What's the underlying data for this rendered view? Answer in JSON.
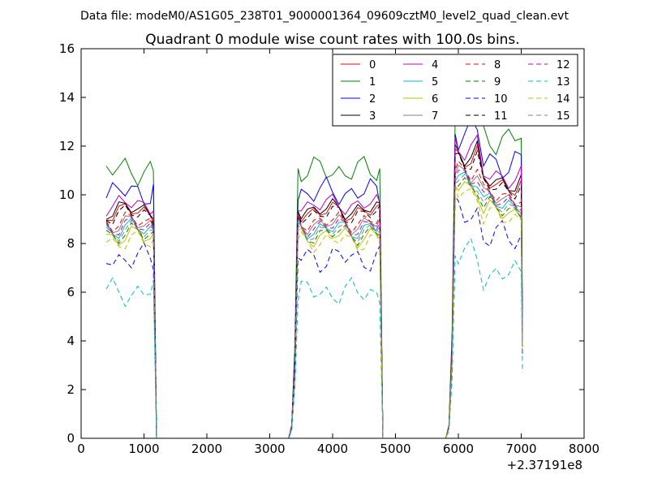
{
  "header": {
    "data_file": "Data file: modeM0/AS1G05_238T01_9000001364_09609cztM0_level2_quad_clean.evt"
  },
  "chart_data": {
    "type": "line",
    "title": "Quadrant 0 module wise count rates with 100.0s bins.",
    "xlabel": "",
    "ylabel": "",
    "xlim": [
      0,
      8000
    ],
    "ylim": [
      0,
      16
    ],
    "x_offset_label": "+2.37191e8",
    "xticks": [
      0,
      1000,
      2000,
      3000,
      4000,
      5000,
      6000,
      7000,
      8000
    ],
    "yticks": [
      0,
      2,
      4,
      6,
      8,
      10,
      12,
      14,
      16
    ],
    "legend_position": "top-right",
    "x": [
      400,
      500,
      600,
      700,
      800,
      900,
      1000,
      1100,
      1150,
      1200,
      1300,
      1400,
      1500,
      1600,
      1700,
      1800,
      1900,
      2000,
      2100,
      2200,
      2300,
      2400,
      2500,
      2600,
      2700,
      2800,
      2900,
      3000,
      3100,
      3200,
      3300,
      3350,
      3400,
      3450,
      3500,
      3600,
      3700,
      3800,
      3900,
      4000,
      4100,
      4200,
      4300,
      4400,
      4500,
      4600,
      4700,
      4750,
      4800,
      4900,
      5000,
      5100,
      5200,
      5300,
      5400,
      5500,
      5600,
      5700,
      5800,
      5850,
      5900,
      5950,
      6000,
      6100,
      6200,
      6300,
      6400,
      6500,
      6600,
      6700,
      6800,
      6900,
      7000,
      7020
    ],
    "series": [
      {
        "name": "0",
        "color": "#ff0000",
        "dash": "solid",
        "level": 9.3,
        "amp": 0.3
      },
      {
        "name": "1",
        "color": "#008000",
        "dash": "solid",
        "level": 11.0,
        "amp": 0.4
      },
      {
        "name": "2",
        "color": "#0000ff",
        "dash": "solid",
        "level": 10.1,
        "amp": 0.4
      },
      {
        "name": "3",
        "color": "#000000",
        "dash": "solid",
        "level": 9.4,
        "amp": 0.3
      },
      {
        "name": "4",
        "color": "#bf00bf",
        "dash": "solid",
        "level": 9.6,
        "amp": 0.3
      },
      {
        "name": "5",
        "color": "#00bfbf",
        "dash": "solid",
        "level": 8.6,
        "amp": 0.3
      },
      {
        "name": "6",
        "color": "#bfbf00",
        "dash": "solid",
        "level": 8.3,
        "amp": 0.3
      },
      {
        "name": "7",
        "color": "#808080",
        "dash": "solid",
        "level": 8.8,
        "amp": 0.3
      },
      {
        "name": "8",
        "color": "#ff0000",
        "dash": "dashed",
        "level": 8.9,
        "amp": 0.3
      },
      {
        "name": "9",
        "color": "#008000",
        "dash": "dashed",
        "level": 8.4,
        "amp": 0.3
      },
      {
        "name": "10",
        "color": "#0000ff",
        "dash": "dashed",
        "level": 7.4,
        "amp": 0.4
      },
      {
        "name": "11",
        "color": "#000000",
        "dash": "dashed",
        "level": 9.2,
        "amp": 0.3
      },
      {
        "name": "12",
        "color": "#bf00bf",
        "dash": "dashed",
        "level": 8.7,
        "amp": 0.3
      },
      {
        "name": "13",
        "color": "#00bfbf",
        "dash": "dashed",
        "level": 6.0,
        "amp": 0.4
      },
      {
        "name": "14",
        "color": "#bfbf00",
        "dash": "dashed",
        "level": 8.1,
        "amp": 0.3
      },
      {
        "name": "15",
        "color": "#808080",
        "dash": "dashed",
        "level": 8.5,
        "amp": 0.3
      }
    ]
  }
}
